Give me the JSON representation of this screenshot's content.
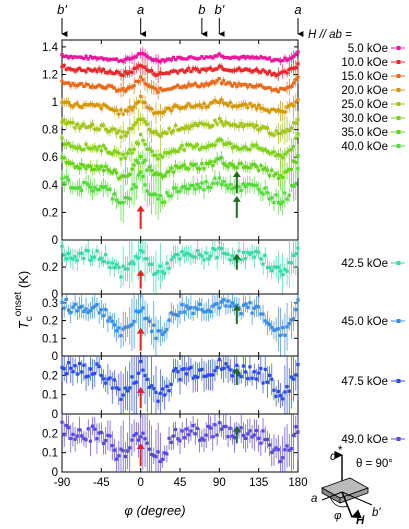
{
  "chart_data": {
    "type": "scatter",
    "xlabel": "φ (degree)",
    "ylabel": "T_c^onset (K)",
    "xlim": [
      -90,
      180
    ],
    "x_ticks": [
      "-90",
      "-45",
      "0",
      "45",
      "90",
      "135",
      "180"
    ],
    "x_tick_values": [
      -90,
      -45,
      0,
      45,
      90,
      135,
      180
    ],
    "direction_markers": [
      {
        "label": "b'",
        "x": -90
      },
      {
        "label": "a",
        "x": 0
      },
      {
        "label": "b",
        "x": 70
      },
      {
        "label": "b'",
        "x": 90
      },
      {
        "label": "a",
        "x": 180
      }
    ],
    "legend_title": "H // ab =",
    "panels": [
      {
        "ylim": [
          0,
          1.45
        ],
        "y_ticks": [
          "0",
          "0.2",
          "0.4",
          "0.6",
          "0.8",
          "1",
          "1.2",
          "1.4"
        ],
        "y_tick_values": [
          0,
          0.2,
          0.4,
          0.6,
          0.8,
          1.0,
          1.2,
          1.4
        ],
        "arrows": [
          {
            "color": "#e8211b",
            "x": 0,
            "y_tip": 0.25,
            "y_tail": 0.08
          },
          {
            "color": "#1f6e1f",
            "x": 110,
            "y_tip": 0.32,
            "y_tail": 0.16
          },
          {
            "color": "#1f6e1f",
            "x": 110,
            "y_tip": 0.5,
            "y_tail": 0.34
          }
        ],
        "series": [
          {
            "name": "5.0 kOe",
            "color": "#e8179c",
            "base": 1.32,
            "cusp": 0.04,
            "dip": 0.02,
            "err": 0.015
          },
          {
            "name": "10.0 kOe",
            "color": "#e8282b",
            "base": 1.23,
            "cusp": 0.05,
            "dip": 0.03,
            "err": 0.02
          },
          {
            "name": "15.0 kOe",
            "color": "#e86a1b",
            "base": 1.12,
            "cusp": 0.06,
            "dip": 0.04,
            "err": 0.02
          },
          {
            "name": "20.0 kOe",
            "color": "#d4980f",
            "base": 0.97,
            "cusp": 0.07,
            "dip": 0.05,
            "err": 0.025
          },
          {
            "name": "25.0 kOe",
            "color": "#a4c41a",
            "base": 0.82,
            "cusp": 0.08,
            "dip": 0.06,
            "err": 0.03
          },
          {
            "name": "30.0 kOe",
            "color": "#82d11a",
            "base": 0.67,
            "cusp": 0.09,
            "dip": 0.07,
            "err": 0.03
          },
          {
            "name": "35.0 kOe",
            "color": "#63d41a",
            "base": 0.53,
            "cusp": 0.1,
            "dip": 0.08,
            "err": 0.035
          },
          {
            "name": "40.0 kOe",
            "color": "#52dc3a",
            "base": 0.38,
            "cusp": 0.12,
            "dip": 0.1,
            "err": 0.05
          }
        ]
      },
      {
        "ylim": [
          0,
          0.4
        ],
        "y_ticks": [
          "0",
          "0.2"
        ],
        "y_tick_values": [
          0,
          0.2
        ],
        "arrows": [
          {
            "color": "#e8211b",
            "x": 0,
            "y_tip": 0.18,
            "y_tail": 0.04
          },
          {
            "color": "#1f6e1f",
            "x": 110,
            "y_tip": 0.3,
            "y_tail": 0.18
          }
        ],
        "series": [
          {
            "name": "42.5 kOe",
            "color": "#3ad9a8",
            "base": 0.28,
            "cusp": 0.06,
            "dip": 0.12,
            "err": 0.06
          }
        ]
      },
      {
        "ylim": [
          0,
          0.35
        ],
        "y_ticks": [
          "0",
          "0.1",
          "0.2",
          "0.3"
        ],
        "y_tick_values": [
          0,
          0.1,
          0.2,
          0.3
        ],
        "arrows": [
          {
            "color": "#e8211b",
            "x": 0,
            "y_tip": 0.16,
            "y_tail": 0.03
          },
          {
            "color": "#1f6e1f",
            "x": 110,
            "y_tip": 0.29,
            "y_tail": 0.18
          }
        ],
        "series": [
          {
            "name": "45.0 kOe",
            "color": "#3a8fe0",
            "base": 0.27,
            "cusp": 0.04,
            "dip": 0.15,
            "err": 0.05
          }
        ]
      },
      {
        "ylim": [
          0,
          0.3
        ],
        "y_ticks": [
          "0",
          "0.1",
          "0.2"
        ],
        "y_tick_values": [
          0,
          0.1,
          0.2
        ],
        "arrows": [
          {
            "color": "#e8211b",
            "x": 0,
            "y_tip": 0.14,
            "y_tail": 0.03
          },
          {
            "color": "#1f6e1f",
            "x": 110,
            "y_tip": 0.24,
            "y_tail": 0.15
          }
        ],
        "series": [
          {
            "name": "47.5 kOe",
            "color": "#2a4fe0",
            "base": 0.22,
            "cusp": 0.04,
            "dip": 0.12,
            "err": 0.06
          }
        ]
      },
      {
        "ylim": [
          0,
          0.3
        ],
        "y_ticks": [
          "0",
          "0.1",
          "0.2"
        ],
        "y_tick_values": [
          0,
          0.1,
          0.2
        ],
        "arrows": [
          {
            "color": "#e8211b",
            "x": 0,
            "y_tip": 0.15,
            "y_tail": 0.03
          },
          {
            "color": "#1f6e1f",
            "x": 110,
            "y_tip": 0.24,
            "y_tail": 0.15
          }
        ],
        "series": [
          {
            "name": "49.0 kOe",
            "color": "#5a4ad9",
            "base": 0.2,
            "cusp": 0.04,
            "dip": 0.12,
            "err": 0.06
          }
        ]
      }
    ]
  },
  "inset": {
    "c_label": "c",
    "theta_label": "θ = 90°",
    "a_label": "a",
    "b_label": "b'",
    "phi_label": "φ",
    "h_label": "H"
  }
}
